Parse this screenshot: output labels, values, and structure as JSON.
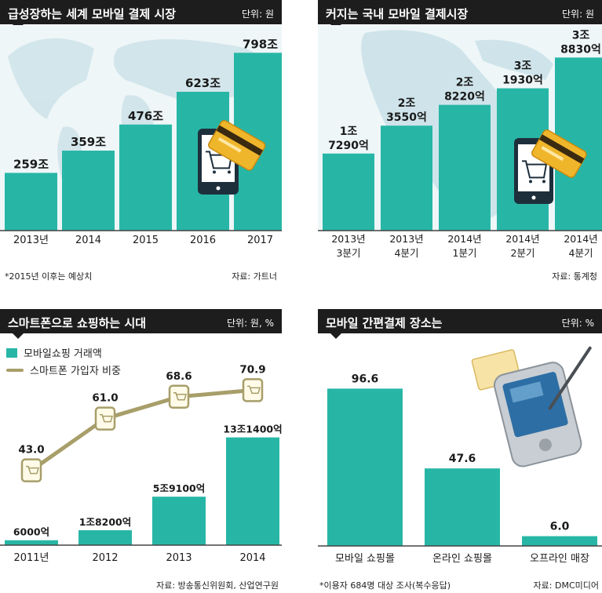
{
  "colors": {
    "bar": "#27b6a6",
    "line": "#a89e6a",
    "header_bg": "#1d1d1d",
    "map": "#cfe4ea",
    "panel_bg": "#eef6f8",
    "axis": "#444444"
  },
  "panels": [
    {
      "title": "급성장하는 세계 모바일 결제 시장",
      "unit": "단위: 원",
      "footnote": "*2015년 이후는 예상치",
      "source": "자료: 가트너"
    },
    {
      "title": "커지는 국내 모바일 결제시장",
      "unit": "단위: 원",
      "footnote": "",
      "source": "자료: 통계청"
    },
    {
      "title": "스마트폰으로 쇼핑하는 시대",
      "unit": "단위: 원, %",
      "footnote": "",
      "source": "자료: 방송통신위원회, 산업연구원",
      "legend": [
        "모바일쇼핑 거래액",
        "스마트폰 가입자 비중"
      ]
    },
    {
      "title": "모바일 간편결제 장소는",
      "unit": "단위: %",
      "footnote": "*이용자 684명 대상 조사(복수응답)",
      "source": "자료: DMC미디어"
    }
  ],
  "chart_data": [
    {
      "type": "bar",
      "title": "급성장하는 세계 모바일 결제 시장",
      "categories": [
        "2013년",
        "2014",
        "2015",
        "2016",
        "2017"
      ],
      "values": [
        259,
        359,
        476,
        623,
        798
      ],
      "labels": [
        "259조",
        "359조",
        "476조",
        "623조",
        "798조"
      ],
      "ylim": [
        0,
        880
      ],
      "icons": [
        "phone-cart-icon",
        "credit-card-icon",
        "world-map"
      ]
    },
    {
      "type": "bar",
      "title": "커지는 국내 모바일 결제시장",
      "categories": [
        [
          "2013년",
          "3분기"
        ],
        [
          "2013년",
          "4분기"
        ],
        [
          "2014년",
          "1분기"
        ],
        [
          "2014년",
          "2분기"
        ],
        [
          "2014년",
          "4분기"
        ]
      ],
      "values": [
        17290,
        23550,
        28220,
        31930,
        38830
      ],
      "labels": [
        [
          "1조",
          "7290억"
        ],
        [
          "2조",
          "3550억"
        ],
        [
          "2조",
          "8220억"
        ],
        [
          "3조",
          "1930억"
        ],
        [
          "3조",
          "8830억"
        ]
      ],
      "ylim": [
        0,
        44000
      ],
      "icons": [
        "phone-cart-icon",
        "credit-card-icon",
        "korea-map"
      ]
    },
    {
      "type": "bar+line",
      "title": "스마트폰으로 쇼핑하는 시대",
      "categories": [
        "2011년",
        "2012",
        "2013",
        "2014"
      ],
      "series": [
        {
          "name": "모바일쇼핑 거래액",
          "type": "bar",
          "values": [
            6000,
            18200,
            59100,
            131400
          ],
          "labels": [
            "6000억",
            "1조8200억",
            "5조9100억",
            "13조1400억"
          ]
        },
        {
          "name": "스마트폰 가입자 비중",
          "type": "line",
          "values": [
            43.0,
            61.0,
            68.6,
            70.9
          ],
          "labels": [
            "43.0",
            "61.0",
            "68.6",
            "70.9"
          ]
        }
      ],
      "bar_ylim": [
        0,
        220000
      ],
      "line_ylim": [
        20,
        80
      ],
      "icons": [
        "phone-cart-icon"
      ]
    },
    {
      "type": "bar",
      "title": "모바일 간편결제 장소는",
      "categories": [
        "모바일 쇼핑몰",
        "온라인 쇼핑몰",
        "오프라인 매장"
      ],
      "values": [
        96.6,
        47.6,
        6.0
      ],
      "labels": [
        "96.6",
        "47.6",
        "6.0"
      ],
      "ylim": [
        0,
        105
      ],
      "icons": [
        "pda-stylus-icon"
      ]
    }
  ]
}
